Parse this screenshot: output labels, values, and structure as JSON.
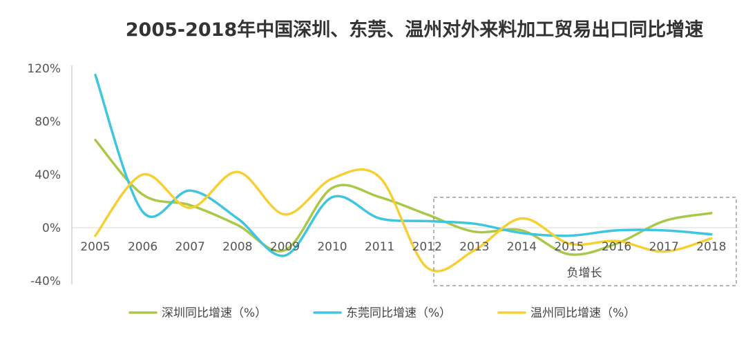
{
  "chart_data": {
    "type": "line",
    "title": "2005-2018年中国深圳、东莞、温州对外来料加工贸易出口同比增速",
    "xlabel": "",
    "ylabel": "",
    "x": [
      "2005",
      "2006",
      "2007",
      "2008",
      "2009",
      "2010",
      "2011",
      "2012",
      "2013",
      "2014",
      "2015",
      "2016",
      "2017",
      "2018"
    ],
    "y_ticks": [
      "120%",
      "80%",
      "40%",
      "0%",
      "-40%"
    ],
    "ylim": [
      -40,
      120
    ],
    "smooth": true,
    "grid": false,
    "legend_position": "bottom",
    "series": [
      {
        "name": "深圳同比增速（%）",
        "color": "#a9c848",
        "values": [
          66,
          25,
          17,
          2,
          -17,
          30,
          23,
          10,
          -3,
          -2,
          -20,
          -12,
          5,
          11
        ]
      },
      {
        "name": "东莞同比增速（%）",
        "color": "#3ec5e0",
        "values": [
          115,
          12,
          28,
          7,
          -21,
          23,
          7,
          5,
          3,
          -4,
          -6,
          -2,
          -2,
          -5
        ]
      },
      {
        "name": "温州同比增速（%）",
        "color": "#f5cf33",
        "values": [
          -6,
          40,
          15,
          42,
          10,
          37,
          38,
          -30,
          -17,
          7,
          -12,
          -10,
          -18,
          -8
        ]
      }
    ],
    "annotation": {
      "label": "负增长",
      "x_from": "2012",
      "x_to": "2018"
    }
  }
}
